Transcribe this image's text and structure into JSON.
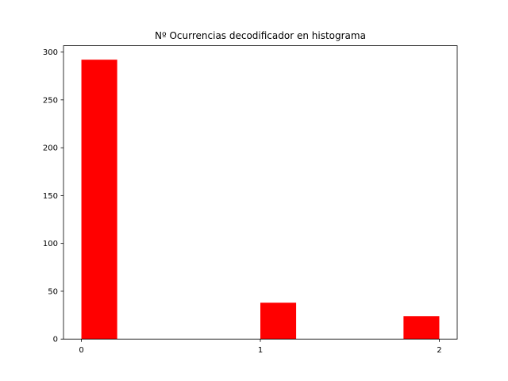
{
  "chart_data": {
    "type": "bar",
    "title": "Nº Ocurrencias decodificador en histograma",
    "xlabel": "",
    "ylabel": "",
    "bins": [
      {
        "start": 0.0,
        "end": 0.2,
        "value": 292
      },
      {
        "start": 1.0,
        "end": 1.2,
        "value": 38
      },
      {
        "start": 1.8,
        "end": 2.0,
        "value": 24
      }
    ],
    "xlim": [
      -0.1,
      2.1
    ],
    "ylim": [
      0,
      306.6
    ],
    "xticks": [
      0,
      1,
      2
    ],
    "xtick_labels": [
      "0",
      "1",
      "2"
    ],
    "yticks": [
      0,
      50,
      100,
      150,
      200,
      250,
      300
    ],
    "ytick_labels": [
      "0",
      "50",
      "100",
      "150",
      "200",
      "250",
      "300"
    ],
    "bar_color": "#ff0000",
    "grid": false,
    "legend": "none"
  }
}
